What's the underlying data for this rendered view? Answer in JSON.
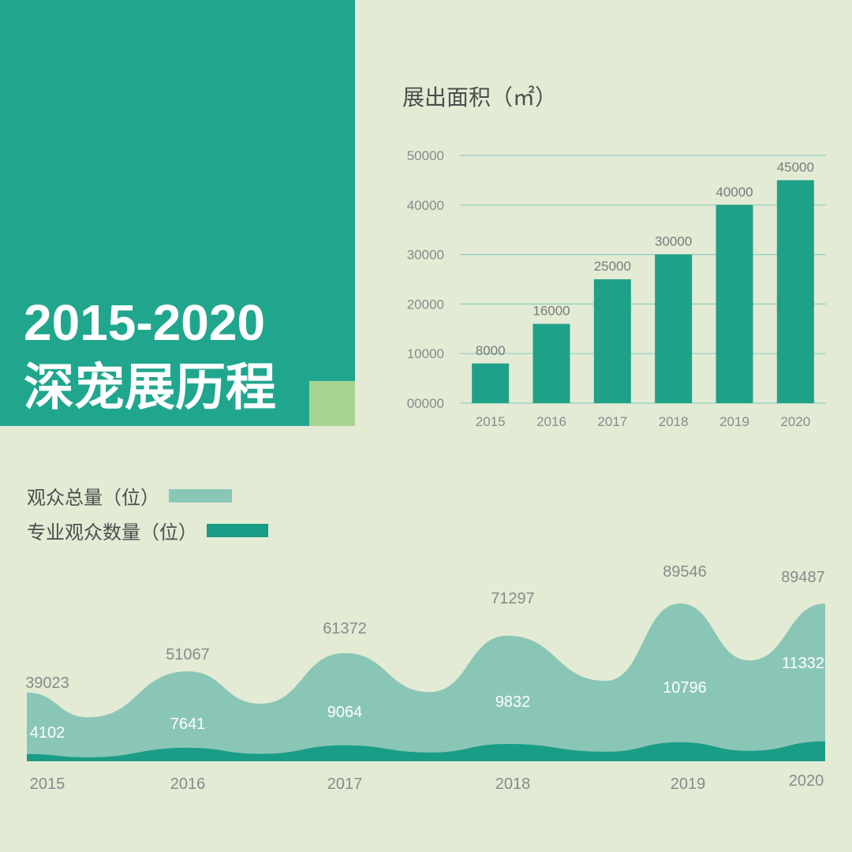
{
  "hero": {
    "title_line1": "2015-2020",
    "title_line2": "深宠展历程"
  },
  "colors": {
    "background": "#e3ebd5",
    "hero": "#21a68e",
    "accent": "#a9d392",
    "bar": "#1fa088",
    "area_total": "#8ac6b6",
    "area_professional": "#1a9d86",
    "text": "#4d4d4d",
    "grid": "#8fd0bf"
  },
  "chart_data": [
    {
      "type": "bar",
      "title": "展出面积（㎡）",
      "categories": [
        "2015",
        "2016",
        "2017",
        "2018",
        "2019",
        "2020"
      ],
      "values": [
        8000,
        16000,
        25000,
        30000,
        40000,
        45000
      ],
      "value_labels": [
        "8000",
        "16000",
        "25000",
        "30000",
        "40000",
        "45000"
      ],
      "ylim": [
        0,
        50000
      ],
      "yticks": [
        "00000",
        "10000",
        "20000",
        "30000",
        "40000",
        "50000"
      ],
      "grid": true
    },
    {
      "type": "area",
      "categories": [
        "2015",
        "2016",
        "2017",
        "2018",
        "2019",
        "2020"
      ],
      "series": [
        {
          "name": "观众总量（位）",
          "values": [
            39023,
            51067,
            61372,
            71297,
            89546,
            89487
          ],
          "labels": [
            "39023",
            "51067",
            "61372",
            "71297",
            "89546",
            "89487"
          ]
        },
        {
          "name": "专业观众数量（位）",
          "values": [
            4102,
            7641,
            9064,
            9832,
            10796,
            11332
          ],
          "labels": [
            "4102",
            "7641",
            "9064",
            "9832",
            "10796",
            "11332"
          ]
        }
      ],
      "legend_placement": "top-left"
    }
  ]
}
